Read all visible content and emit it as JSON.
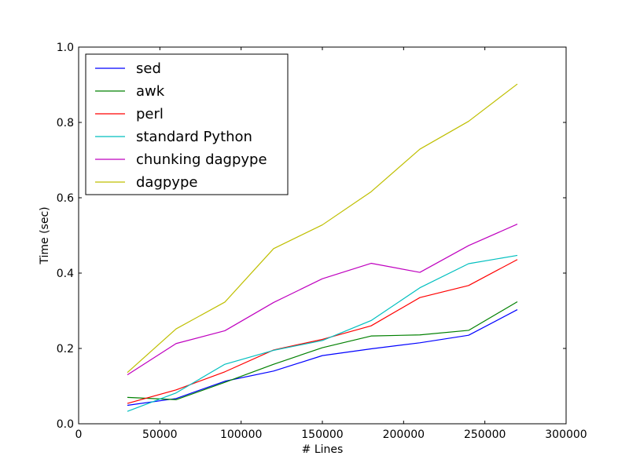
{
  "chart_data": {
    "type": "line",
    "title": "",
    "xlabel": "# Lines",
    "ylabel": "Time (sec)",
    "xlim": [
      0,
      300000
    ],
    "ylim": [
      0.0,
      1.0
    ],
    "grid": false,
    "legend_position": "top-left",
    "x": [
      30000,
      60000,
      90000,
      120000,
      150000,
      180000,
      210000,
      240000,
      270000
    ],
    "x_ticks": [
      0,
      50000,
      100000,
      150000,
      200000,
      250000,
      300000
    ],
    "x_tick_labels": [
      "0",
      "50000",
      "100000",
      "150000",
      "200000",
      "250000",
      "300000"
    ],
    "y_ticks": [
      0.0,
      0.2,
      0.4,
      0.6,
      0.8,
      1.0
    ],
    "y_tick_labels": [
      "0.0",
      "0.2",
      "0.4",
      "0.6",
      "0.8",
      "1.0"
    ],
    "series": [
      {
        "name": "sed",
        "color": "#0000ff",
        "values": [
          0.049,
          0.067,
          0.113,
          0.14,
          0.181,
          0.199,
          0.215,
          0.235,
          0.303
        ]
      },
      {
        "name": "awk",
        "color": "#008000",
        "values": [
          0.07,
          0.064,
          0.11,
          0.158,
          0.202,
          0.233,
          0.236,
          0.248,
          0.324
        ]
      },
      {
        "name": "perl",
        "color": "#ff0000",
        "values": [
          0.054,
          0.09,
          0.138,
          0.196,
          0.224,
          0.26,
          0.335,
          0.367,
          0.436
        ]
      },
      {
        "name": "standard Python",
        "color": "#00bfbf",
        "values": [
          0.033,
          0.082,
          0.158,
          0.195,
          0.221,
          0.274,
          0.361,
          0.425,
          0.447
        ]
      },
      {
        "name": "chunking dagpype",
        "color": "#bf00bf",
        "values": [
          0.13,
          0.213,
          0.247,
          0.322,
          0.385,
          0.426,
          0.402,
          0.473,
          0.53
        ]
      },
      {
        "name": "dagpype",
        "color": "#bfbf00",
        "values": [
          0.136,
          0.252,
          0.323,
          0.465,
          0.528,
          0.616,
          0.729,
          0.803,
          0.902
        ]
      }
    ]
  }
}
